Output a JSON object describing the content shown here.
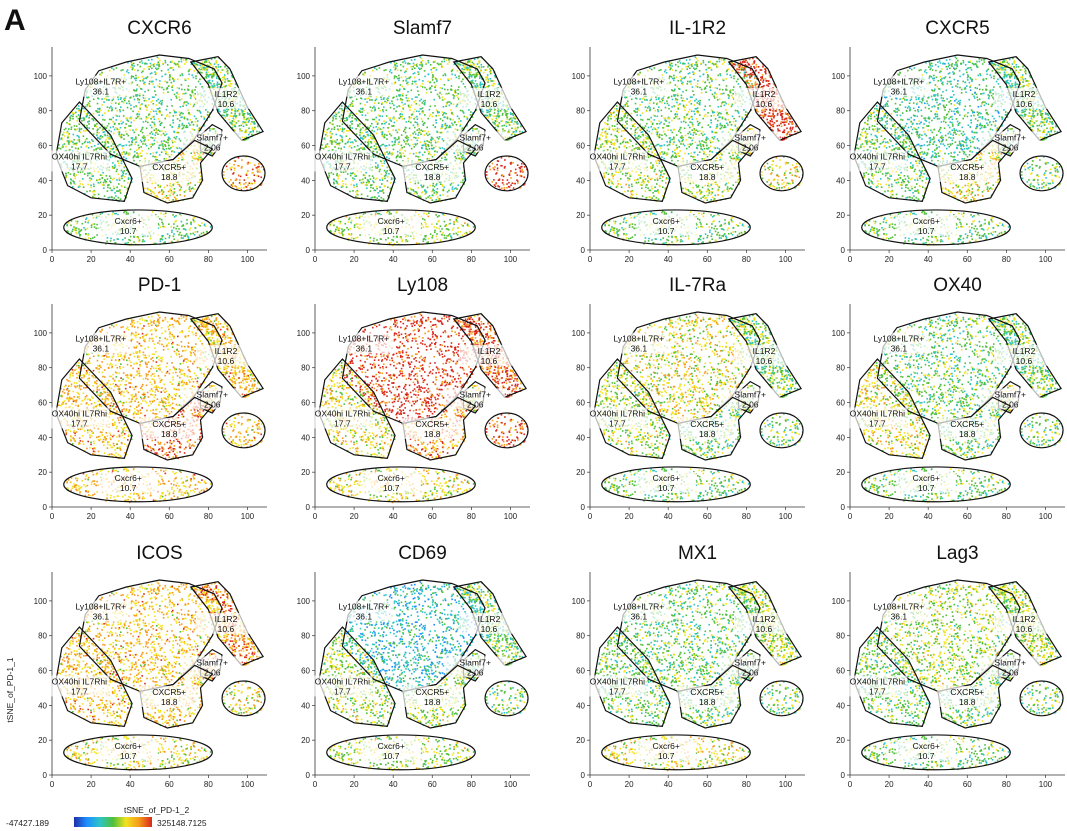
{
  "figure": {
    "panel_letter": "A",
    "y_axis_label": "tSNE_of_PD-1_1",
    "x_axis_label": "tSNE_of_PD-1_2",
    "colorscale": {
      "min_label": "-47427.189",
      "max_label": "325148.7125",
      "stops": [
        "#1f2fa8",
        "#1e90ff",
        "#2ec4c4",
        "#4fbf3a",
        "#f2e21f",
        "#f59a1c",
        "#d9281e"
      ]
    }
  },
  "chart_data": {
    "type": "scatter",
    "x_ticks": [
      0,
      20,
      40,
      60,
      80,
      100
    ],
    "y_ticks": [
      0,
      20,
      40,
      60,
      80,
      100
    ],
    "xlim": [
      0,
      110
    ],
    "ylim": [
      0,
      112
    ],
    "gates": [
      {
        "name": "Ly108+IL7R+",
        "value": "36.1",
        "label_at": [
          25,
          95
        ],
        "polygon": [
          [
            14,
            74
          ],
          [
            17,
            92
          ],
          [
            24,
            103
          ],
          [
            38,
            108
          ],
          [
            55,
            112
          ],
          [
            70,
            110
          ],
          [
            83,
            104
          ],
          [
            87,
            96
          ],
          [
            82,
            80
          ],
          [
            73,
            64
          ],
          [
            62,
            52
          ],
          [
            45,
            48
          ],
          [
            30,
            55
          ]
        ]
      },
      {
        "name": "IL1R2",
        "value": "10.6",
        "label_at": [
          89,
          88
        ],
        "polygon": [
          [
            71,
            108
          ],
          [
            85,
            111
          ],
          [
            91,
            104
          ],
          [
            100,
            82
          ],
          [
            108,
            68
          ],
          [
            97,
            63
          ],
          [
            85,
            79
          ],
          [
            80,
            95
          ]
        ]
      },
      {
        "name": "Slamf7+",
        "value": "2.06",
        "label_at": [
          82,
          63
        ],
        "polygon": [
          [
            82,
            72
          ],
          [
            87,
            69
          ],
          [
            86,
            60
          ],
          [
            82,
            54
          ],
          [
            76,
            57
          ],
          [
            76,
            66
          ]
        ]
      },
      {
        "name": "OX40hi IL7Rhi",
        "value": "17.7",
        "label_at": [
          14,
          52
        ],
        "polygon": [
          [
            2,
            54
          ],
          [
            5,
            73
          ],
          [
            14,
            85
          ],
          [
            30,
            66
          ],
          [
            41,
            41
          ],
          [
            37,
            28
          ],
          [
            20,
            30
          ],
          [
            8,
            37
          ]
        ]
      },
      {
        "name": "CXCR5+",
        "value": "18.8",
        "label_at": [
          60,
          46
        ],
        "polygon": [
          [
            45,
            48
          ],
          [
            62,
            52
          ],
          [
            73,
            63
          ],
          [
            82,
            58
          ],
          [
            76,
            50
          ],
          [
            77,
            40
          ],
          [
            72,
            30
          ],
          [
            59,
            27
          ],
          [
            47,
            33
          ]
        ]
      },
      {
        "name": "",
        "value": "",
        "ellipse": [
          98,
          44,
          11,
          10
        ]
      },
      {
        "name": "Cxcr6+",
        "value": "10.7",
        "label_at": [
          39,
          15
        ],
        "ellipse": [
          44,
          13,
          38,
          10
        ]
      }
    ],
    "panels": [
      {
        "title": "CXCR6",
        "profile": [
          3,
          3,
          3,
          3,
          4,
          5,
          3
        ]
      },
      {
        "title": "Slamf7",
        "profile": [
          3,
          3,
          3,
          3,
          3,
          6,
          3.5
        ]
      },
      {
        "title": "IL-1R2",
        "profile": [
          3,
          6,
          4,
          3.5,
          3.5,
          4,
          3
        ]
      },
      {
        "title": "CXCR5",
        "profile": [
          2.5,
          3,
          3,
          3,
          4,
          3,
          3
        ]
      },
      {
        "title": "PD-1",
        "profile": [
          4.5,
          4.5,
          4.5,
          4.5,
          5.5,
          4.5,
          4.5
        ]
      },
      {
        "title": "Ly108",
        "profile": [
          6,
          5.5,
          4,
          4,
          5,
          5.5,
          4
        ]
      },
      {
        "title": "IL-7Ra",
        "profile": [
          4,
          3,
          3.5,
          3.5,
          3,
          3,
          3
        ]
      },
      {
        "title": "OX40",
        "profile": [
          3,
          3,
          4,
          4,
          3,
          3,
          3
        ]
      },
      {
        "title": "ICOS",
        "profile": [
          4.5,
          5,
          5,
          4.5,
          4.5,
          4,
          4
        ]
      },
      {
        "title": "CD69",
        "profile": [
          2,
          3,
          3,
          3.5,
          3.5,
          3,
          3.5
        ]
      },
      {
        "title": "MX1",
        "profile": [
          3,
          3.5,
          3,
          3,
          3,
          3,
          4
        ]
      },
      {
        "title": "Lag3",
        "profile": [
          3.5,
          3.5,
          3,
          3,
          3,
          3,
          3
        ]
      }
    ]
  }
}
